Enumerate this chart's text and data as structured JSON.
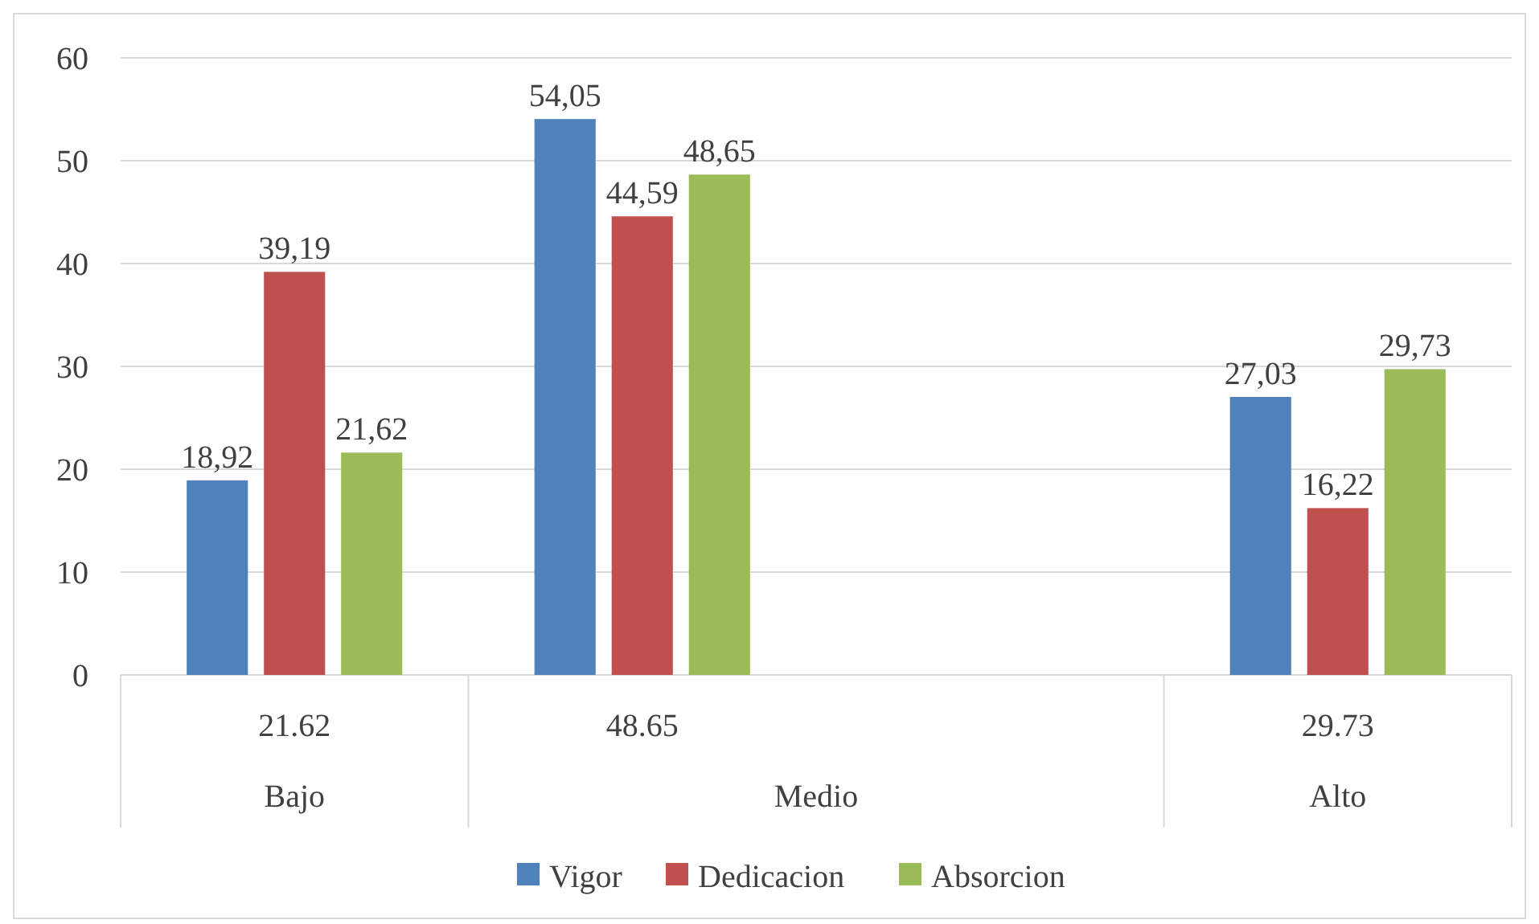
{
  "chart_data": {
    "type": "bar",
    "categories": [
      "21.62",
      "48.65",
      null,
      "29.73"
    ],
    "series": [
      {
        "name": "Vigor",
        "color": "#4f81bd",
        "values": [
          18.92,
          54.05,
          null,
          27.03
        ],
        "value_labels": [
          "18,92",
          "54,05",
          null,
          "27,03"
        ]
      },
      {
        "name": "Dedicacion",
        "color": "#c0504d",
        "values": [
          39.19,
          44.59,
          null,
          16.22
        ],
        "value_labels": [
          "39,19",
          "44,59",
          null,
          "16,22"
        ]
      },
      {
        "name": "Absorcion",
        "color": "#9bbb59",
        "values": [
          21.62,
          48.65,
          null,
          29.73
        ],
        "value_labels": [
          "21,62",
          "48,65",
          null,
          "29,73"
        ]
      }
    ],
    "annotations": [
      "Bajo",
      "Medio",
      "Alto"
    ],
    "ylim": [
      0,
      60
    ],
    "yticks": [
      0,
      10,
      20,
      30,
      40,
      50,
      60
    ],
    "grid": "y",
    "legend": "bottom"
  }
}
